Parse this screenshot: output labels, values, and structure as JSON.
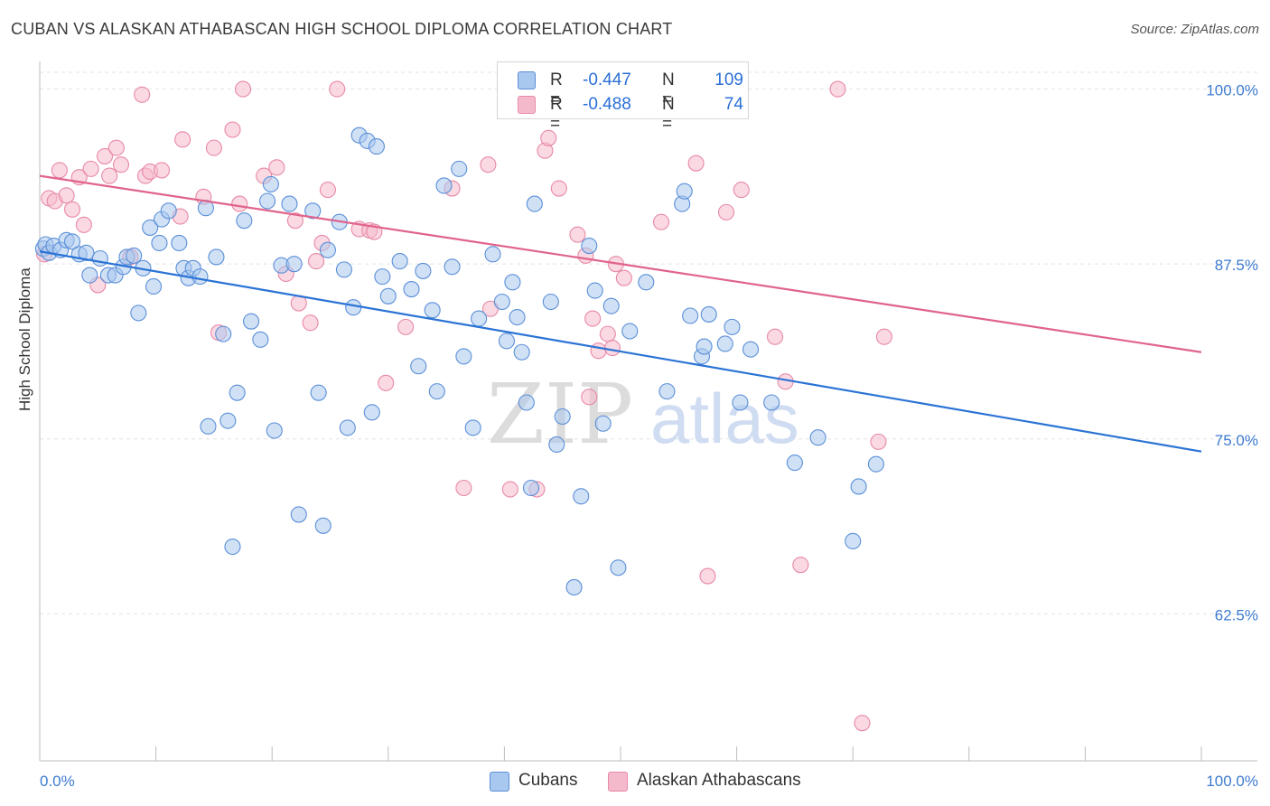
{
  "title": "CUBAN VS ALASKAN ATHABASCAN HIGH SCHOOL DIPLOMA CORRELATION CHART",
  "source": "Source: ZipAtlas.com",
  "watermark": {
    "zip": "ZIP",
    "atlas": "atlas"
  },
  "colors": {
    "blue_fill": "#a9c8ef",
    "blue_stroke": "#5b8fd8",
    "blue_line": "#2a73d5",
    "pink_fill": "#f5b9cc",
    "pink_stroke": "#e889a7",
    "pink_line": "#e0638b",
    "axis_text": "#3d7bd0",
    "grid": "#e2e2e2"
  },
  "legend": {
    "rows": [
      {
        "r_label": "R =",
        "r_value": "-0.447",
        "n_label": "N =",
        "n_value": "109",
        "color": "#a9c8ef"
      },
      {
        "r_label": "R =",
        "r_value": "-0.488",
        "n_label": "N =",
        "n_value": "74",
        "color": "#f5b9cc"
      }
    ]
  },
  "chart_data": {
    "type": "scatter",
    "title": "CUBAN VS ALASKAN ATHABASCAN HIGH SCHOOL DIPLOMA CORRELATION CHART",
    "xlabel": "",
    "ylabel": "High School Diploma",
    "xlim": [
      0,
      100
    ],
    "ylim": [
      52,
      101.2
    ],
    "x_tick_labels": [
      "0.0%",
      "100.0%"
    ],
    "y_ticks": [
      62.5,
      75.0,
      87.5,
      100.0
    ],
    "y_tick_labels": [
      "62.5%",
      "75.0%",
      "87.5%",
      "100.0%"
    ],
    "grid": true,
    "legend_position": "top-center",
    "series": [
      {
        "name": "Cubans",
        "trend": {
          "x": [
            0,
            100
          ],
          "y": [
            88.4,
            74.1
          ]
        },
        "points": [
          [
            0.3,
            88.6
          ],
          [
            0.5,
            88.9
          ],
          [
            0.8,
            88.3
          ],
          [
            1.2,
            88.8
          ],
          [
            1.8,
            88.5
          ],
          [
            2.3,
            89.2
          ],
          [
            2.8,
            89.1
          ],
          [
            3.4,
            88.2
          ],
          [
            4.0,
            88.3
          ],
          [
            4.3,
            86.7
          ],
          [
            5.2,
            87.9
          ],
          [
            5.9,
            86.7
          ],
          [
            6.5,
            86.7
          ],
          [
            7.2,
            87.3
          ],
          [
            7.5,
            88.0
          ],
          [
            8.1,
            88.1
          ],
          [
            8.5,
            84.0
          ],
          [
            8.9,
            87.2
          ],
          [
            9.5,
            90.1
          ],
          [
            9.8,
            85.9
          ],
          [
            10.3,
            89.0
          ],
          [
            10.5,
            90.7
          ],
          [
            11.1,
            91.3
          ],
          [
            12.0,
            89.0
          ],
          [
            12.4,
            87.2
          ],
          [
            12.8,
            86.5
          ],
          [
            13.2,
            87.2
          ],
          [
            13.8,
            86.6
          ],
          [
            14.3,
            91.5
          ],
          [
            14.5,
            75.9
          ],
          [
            15.2,
            88.0
          ],
          [
            15.8,
            82.5
          ],
          [
            16.2,
            76.3
          ],
          [
            16.6,
            67.3
          ],
          [
            17.0,
            78.3
          ],
          [
            17.6,
            90.6
          ],
          [
            18.2,
            83.4
          ],
          [
            19.0,
            82.1
          ],
          [
            19.6,
            92.0
          ],
          [
            19.9,
            93.2
          ],
          [
            20.2,
            75.6
          ],
          [
            20.8,
            87.4
          ],
          [
            21.5,
            91.8
          ],
          [
            21.9,
            87.5
          ],
          [
            22.3,
            69.6
          ],
          [
            23.5,
            91.3
          ],
          [
            24.0,
            78.3
          ],
          [
            24.4,
            68.8
          ],
          [
            24.8,
            88.5
          ],
          [
            25.8,
            90.5
          ],
          [
            26.2,
            87.1
          ],
          [
            26.5,
            75.8
          ],
          [
            27.0,
            84.4
          ],
          [
            27.5,
            96.7
          ],
          [
            28.2,
            96.3
          ],
          [
            28.6,
            76.9
          ],
          [
            29.0,
            95.9
          ],
          [
            29.5,
            86.6
          ],
          [
            30.0,
            85.2
          ],
          [
            31.0,
            87.7
          ],
          [
            32.0,
            85.7
          ],
          [
            32.6,
            80.2
          ],
          [
            33.0,
            87.0
          ],
          [
            33.8,
            84.2
          ],
          [
            34.2,
            78.4
          ],
          [
            34.8,
            93.1
          ],
          [
            35.5,
            87.3
          ],
          [
            36.1,
            94.3
          ],
          [
            36.5,
            80.9
          ],
          [
            37.3,
            75.8
          ],
          [
            37.8,
            83.6
          ],
          [
            39.0,
            88.2
          ],
          [
            39.8,
            84.8
          ],
          [
            40.2,
            82.0
          ],
          [
            40.7,
            86.2
          ],
          [
            41.1,
            83.7
          ],
          [
            41.5,
            81.2
          ],
          [
            41.9,
            77.6
          ],
          [
            42.3,
            71.5
          ],
          [
            42.6,
            91.8
          ],
          [
            44.0,
            84.8
          ],
          [
            44.5,
            74.6
          ],
          [
            45.0,
            76.6
          ],
          [
            46.0,
            64.4
          ],
          [
            46.6,
            70.9
          ],
          [
            47.3,
            88.8
          ],
          [
            47.8,
            85.6
          ],
          [
            48.5,
            76.1
          ],
          [
            49.2,
            84.5
          ],
          [
            49.8,
            65.8
          ],
          [
            50.8,
            82.7
          ],
          [
            52.2,
            86.2
          ],
          [
            54.0,
            78.4
          ],
          [
            55.3,
            91.8
          ],
          [
            55.5,
            92.7
          ],
          [
            56.0,
            83.8
          ],
          [
            57.0,
            80.9
          ],
          [
            57.2,
            81.6
          ],
          [
            57.6,
            83.9
          ],
          [
            59.0,
            81.8
          ],
          [
            59.6,
            83.0
          ],
          [
            60.3,
            77.6
          ],
          [
            61.2,
            81.4
          ],
          [
            63.0,
            77.6
          ],
          [
            65.0,
            73.3
          ],
          [
            67.0,
            75.1
          ],
          [
            70.0,
            67.7
          ],
          [
            70.5,
            71.6
          ],
          [
            72.0,
            73.2
          ]
        ]
      },
      {
        "name": "Alaskan Athabascans",
        "trend": {
          "x": [
            0,
            100
          ],
          "y": [
            93.8,
            81.2
          ]
        },
        "points": [
          [
            0.4,
            88.2
          ],
          [
            0.8,
            92.2
          ],
          [
            1.3,
            92.0
          ],
          [
            1.7,
            94.2
          ],
          [
            2.3,
            92.4
          ],
          [
            2.8,
            91.4
          ],
          [
            3.4,
            93.7
          ],
          [
            3.8,
            90.3
          ],
          [
            4.4,
            94.3
          ],
          [
            5.0,
            86.0
          ],
          [
            5.6,
            95.2
          ],
          [
            6.0,
            93.8
          ],
          [
            6.6,
            95.8
          ],
          [
            7.0,
            94.6
          ],
          [
            7.8,
            88.0
          ],
          [
            8.8,
            99.6
          ],
          [
            9.1,
            93.8
          ],
          [
            9.5,
            94.1
          ],
          [
            10.5,
            94.2
          ],
          [
            12.1,
            90.9
          ],
          [
            12.3,
            96.4
          ],
          [
            14.1,
            92.3
          ],
          [
            15.0,
            95.8
          ],
          [
            15.4,
            82.6
          ],
          [
            16.6,
            97.1
          ],
          [
            17.2,
            91.8
          ],
          [
            17.5,
            100.0
          ],
          [
            19.3,
            93.8
          ],
          [
            20.4,
            94.4
          ],
          [
            21.2,
            86.8
          ],
          [
            22.0,
            90.6
          ],
          [
            22.3,
            84.7
          ],
          [
            23.3,
            83.3
          ],
          [
            23.8,
            87.7
          ],
          [
            24.3,
            89.0
          ],
          [
            24.8,
            92.8
          ],
          [
            25.6,
            100.0
          ],
          [
            27.5,
            90.0
          ],
          [
            28.4,
            89.9
          ],
          [
            28.8,
            89.8
          ],
          [
            29.8,
            79.0
          ],
          [
            31.5,
            83.0
          ],
          [
            35.5,
            92.9
          ],
          [
            36.5,
            71.5
          ],
          [
            38.6,
            94.6
          ],
          [
            38.8,
            84.3
          ],
          [
            40.5,
            71.4
          ],
          [
            41.6,
            100.0
          ],
          [
            42.8,
            71.4
          ],
          [
            43.5,
            95.6
          ],
          [
            43.8,
            96.5
          ],
          [
            44.7,
            92.9
          ],
          [
            45.3,
            99.0
          ],
          [
            46.3,
            89.6
          ],
          [
            47.0,
            88.1
          ],
          [
            47.3,
            78.0
          ],
          [
            47.6,
            83.6
          ],
          [
            48.1,
            81.3
          ],
          [
            48.9,
            82.5
          ],
          [
            49.3,
            81.5
          ],
          [
            49.6,
            87.5
          ],
          [
            50.3,
            86.5
          ],
          [
            53.5,
            90.5
          ],
          [
            56.5,
            94.7
          ],
          [
            57.5,
            65.2
          ],
          [
            59.1,
            91.2
          ],
          [
            60.4,
            92.8
          ],
          [
            63.3,
            82.3
          ],
          [
            64.2,
            79.1
          ],
          [
            65.5,
            66.0
          ],
          [
            68.7,
            100.0
          ],
          [
            70.8,
            54.7
          ],
          [
            72.2,
            74.8
          ],
          [
            72.7,
            82.3
          ]
        ]
      }
    ]
  }
}
